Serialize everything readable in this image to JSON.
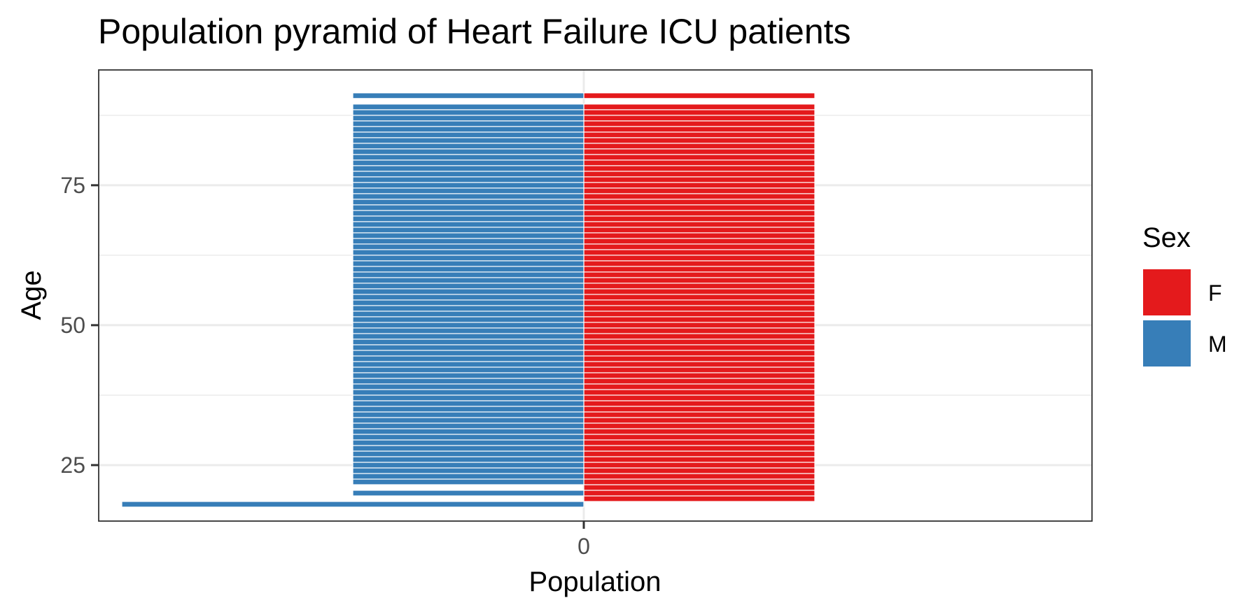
{
  "chart_data": {
    "type": "bar",
    "orientation": "horizontal",
    "title": "Population pyramid of Heart Failure ICU patients",
    "xlabel": "Population",
    "ylabel": "Age",
    "x_ticks": [
      0
    ],
    "x_tick_labels": [
      "0"
    ],
    "y_ticks": [
      25,
      50,
      75
    ],
    "y_tick_labels": [
      "25",
      "50",
      "75"
    ],
    "xlim": [
      -2.1,
      2.2
    ],
    "ylim": [
      15,
      95.6
    ],
    "grid": true,
    "legend": {
      "title": "Sex",
      "position": "right",
      "entries": [
        {
          "label": "F",
          "color": "#E41A1C"
        },
        {
          "label": "M",
          "color": "#377EB8"
        }
      ]
    },
    "series": [
      {
        "name": "F",
        "color": "#E41A1C",
        "ages": [
          19,
          20,
          21,
          22,
          23,
          24,
          25,
          26,
          27,
          28,
          29,
          30,
          31,
          32,
          33,
          34,
          35,
          36,
          37,
          38,
          39,
          40,
          41,
          42,
          43,
          44,
          45,
          46,
          47,
          48,
          49,
          50,
          51,
          52,
          53,
          54,
          55,
          56,
          57,
          58,
          59,
          60,
          61,
          62,
          63,
          64,
          65,
          66,
          67,
          68,
          69,
          70,
          71,
          72,
          73,
          74,
          75,
          76,
          77,
          78,
          79,
          80,
          81,
          82,
          83,
          84,
          85,
          86,
          87,
          88,
          89,
          91
        ],
        "value": 1
      },
      {
        "name": "M",
        "color": "#377EB8",
        "ages": [
          18,
          20,
          22,
          23,
          24,
          25,
          26,
          27,
          28,
          29,
          30,
          31,
          32,
          33,
          34,
          35,
          36,
          37,
          38,
          39,
          40,
          41,
          42,
          43,
          44,
          45,
          46,
          47,
          48,
          49,
          50,
          51,
          52,
          53,
          54,
          55,
          56,
          57,
          58,
          59,
          60,
          61,
          62,
          63,
          64,
          65,
          66,
          67,
          68,
          69,
          70,
          71,
          72,
          73,
          74,
          75,
          76,
          77,
          78,
          79,
          80,
          81,
          82,
          83,
          84,
          85,
          86,
          87,
          88,
          89,
          91
        ],
        "value": -1,
        "overrides": {
          "18": -2
        }
      }
    ]
  }
}
